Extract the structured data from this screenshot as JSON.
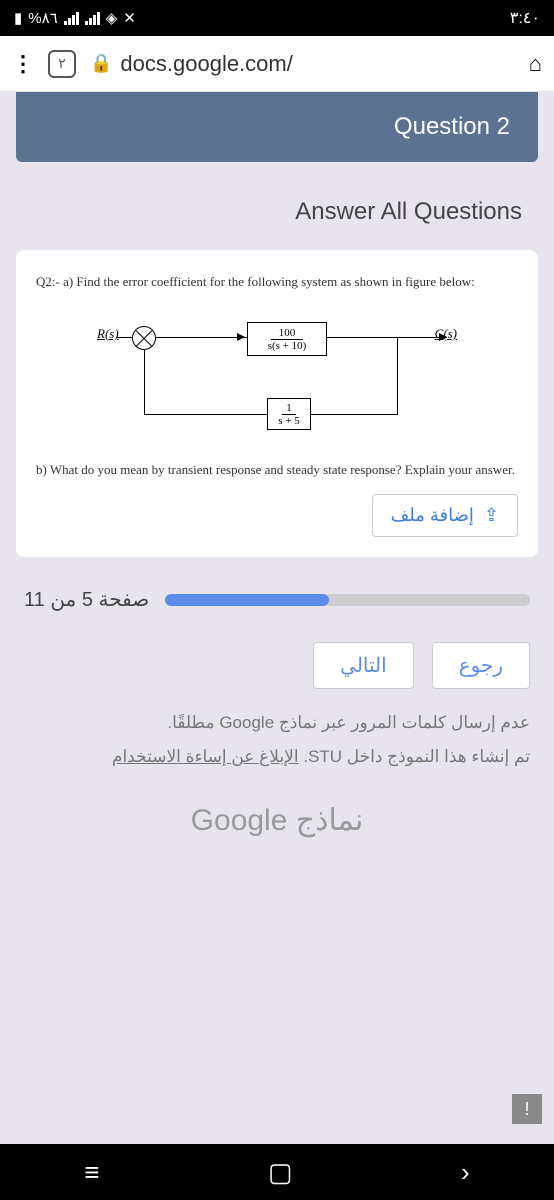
{
  "status": {
    "battery": "%٨٦",
    "time": "٣:٤٠"
  },
  "browser": {
    "tab_count": "٢",
    "url": "docs.google.com/"
  },
  "header": {
    "title": "Question 2"
  },
  "section_title": "Answer All Questions",
  "question": {
    "part_a": "Q2:- a) Find the error coefficient for the following system as shown in figure below:",
    "diagram": {
      "rs": "R(s)",
      "cs": "C(s)",
      "block1_num": "100",
      "block1_den": "s(s + 10)",
      "block2_num": "1",
      "block2_den": "s + 5"
    },
    "part_b": "b) What do you mean by transient response and steady state response? Explain your answer.",
    "upload_label": "إضافة ملف"
  },
  "progress": {
    "label": "صفحة 5 من 11",
    "percent": 45
  },
  "nav": {
    "next": "التالي",
    "back": "رجوع"
  },
  "footer": {
    "line1": "عدم إرسال كلمات المرور عبر نماذج Google مطلقًا.",
    "line2_prefix": "تم إنشاء هذا النموذج داخل STU. ",
    "report_link": "الإبلاغ عن إساءة الاستخدام",
    "brand": "نماذج Google"
  }
}
